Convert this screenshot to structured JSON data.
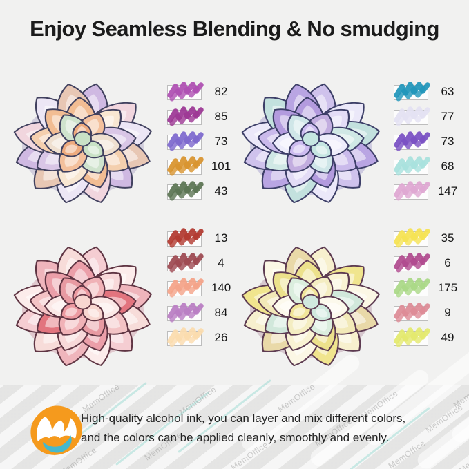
{
  "title": "Enjoy Seamless Blending & No smudging",
  "colors": {
    "background": "#f1f1f0",
    "band": "#ebebea",
    "title_text": "#1b1b1b",
    "number_text": "#161616",
    "swatch_box_fill": "#fdfdfd",
    "swatch_box_border": "#bdbdbd"
  },
  "quadrants": [
    {
      "position": "top-left",
      "swatches": [
        {
          "number": "82",
          "color": "#ae4fb2"
        },
        {
          "number": "85",
          "color": "#9c3794"
        },
        {
          "number": "73",
          "color": "#7d68cd"
        },
        {
          "number": "101",
          "color": "#d8932e"
        },
        {
          "number": "43",
          "color": "#5b7453"
        }
      ],
      "palette": {
        "outline": "#41415f",
        "shadow": "#7e6fa8",
        "outer": [
          "#cfb9e2",
          "#f1d6de",
          "#ece6f5",
          "#e8c7b4"
        ],
        "middle": [
          "#f2bd93",
          "#f8e7d2",
          "#d9c6e6",
          "#f4cfae"
        ],
        "inner": [
          "#f3c09c",
          "#efe0d0",
          "#cfe3cd"
        ],
        "bud": [
          "#eeab7e",
          "#c9e2c6"
        ]
      }
    },
    {
      "position": "top-right",
      "swatches": [
        {
          "number": "63",
          "color": "#2096ba"
        },
        {
          "number": "77",
          "color": "#e3e1f2"
        },
        {
          "number": "73",
          "color": "#7950c3"
        },
        {
          "number": "68",
          "color": "#a8e1dd"
        },
        {
          "number": "147",
          "color": "#dfa7d2"
        }
      ],
      "palette": {
        "outline": "#3d3f68",
        "shadow": "#6f63b8",
        "outer": [
          "#cfc2ec",
          "#ebe8f9",
          "#c3e1de",
          "#b9a5e3"
        ],
        "middle": [
          "#b39bde",
          "#e3dcf6",
          "#d0e8e5",
          "#cabaeb"
        ],
        "inner": [
          "#c2addf",
          "#eeedfb",
          "#cfe6e8"
        ],
        "bud": [
          "#cdbcf0",
          "#c6e6e2"
        ]
      }
    },
    {
      "position": "bottom-left",
      "swatches": [
        {
          "number": "13",
          "color": "#b1392f"
        },
        {
          "number": "4",
          "color": "#9d4951"
        },
        {
          "number": "140",
          "color": "#f4a388"
        },
        {
          "number": "84",
          "color": "#b97dc3"
        },
        {
          "number": "26",
          "color": "#fbdbad"
        }
      ],
      "palette": {
        "outline": "#5f3543",
        "shadow": "#b55f72",
        "outer": [
          "#f5cdd2",
          "#fceceb",
          "#efb5bc",
          "#f7dcd9"
        ],
        "middle": [
          "#eb9fa9",
          "#f7d8d9",
          "#e2747e",
          "#f3c3c5"
        ],
        "inner": [
          "#f0b2b7",
          "#fbe9e7",
          "#e89aa2"
        ],
        "bud": [
          "#ec9aa1",
          "#f8d6d0"
        ]
      }
    },
    {
      "position": "bottom-right",
      "swatches": [
        {
          "number": "35",
          "color": "#f5e252"
        },
        {
          "number": "6",
          "color": "#b04a8e"
        },
        {
          "number": "175",
          "color": "#aad886"
        },
        {
          "number": "9",
          "color": "#dd8b96"
        },
        {
          "number": "49",
          "color": "#e3e96d"
        }
      ],
      "palette": {
        "outline": "#5d3b51",
        "shadow": "#8f5878",
        "outer": [
          "#f7f0ce",
          "#f0e58e",
          "#fbf7e5",
          "#e9d9a8"
        ],
        "middle": [
          "#ece18c",
          "#f9f3d4",
          "#d1e8db",
          "#f2e9b8"
        ],
        "inner": [
          "#f4edc2",
          "#fcf9ec",
          "#dbeede"
        ],
        "bud": [
          "#f1e69a",
          "#d0e9de"
        ]
      }
    }
  ],
  "footer": {
    "line1": "High-quality alcohol ink, you can layer and mix different colors,",
    "line2": "and the colors can be applied cleanly, smoothly and evenly.",
    "logo": {
      "orange": "#f59a1d",
      "teal": "#45b8cc",
      "white": "#ffffff"
    }
  },
  "watermark": {
    "text": "MemOffice"
  }
}
